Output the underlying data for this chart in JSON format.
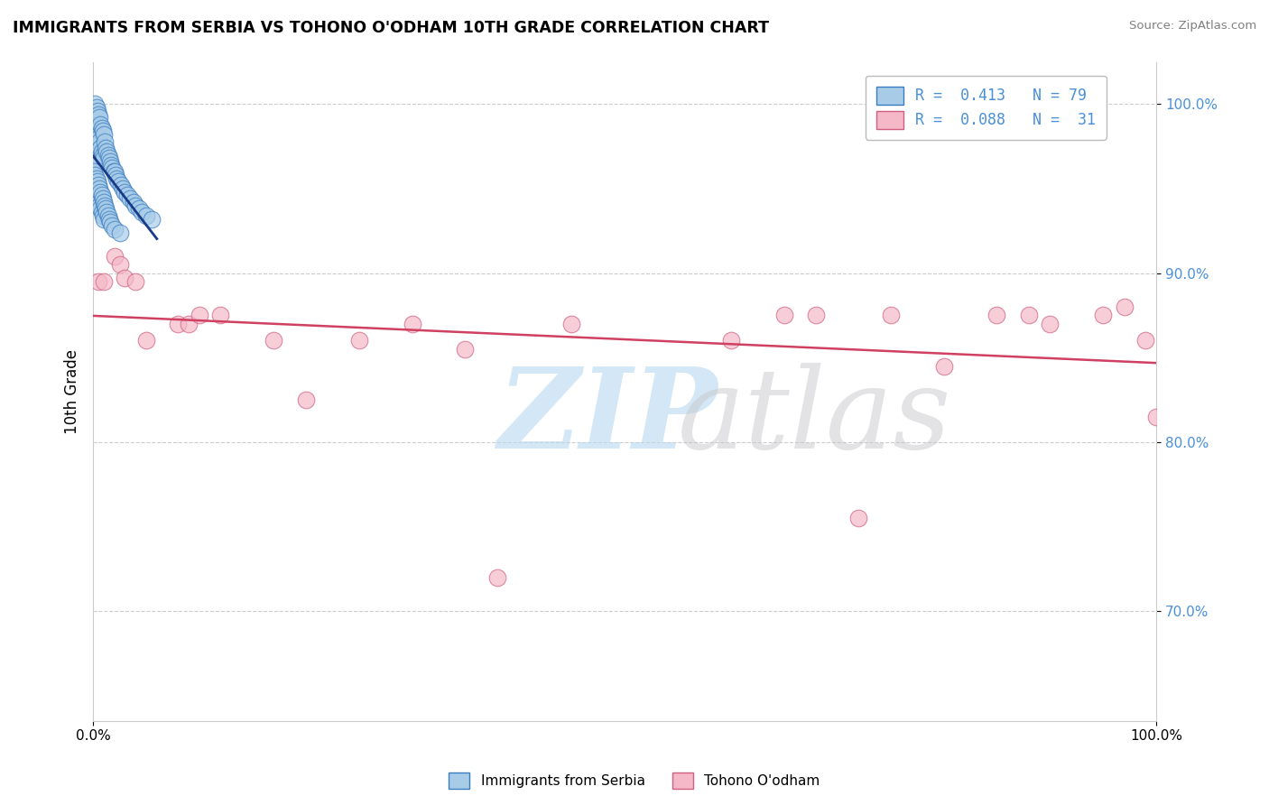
{
  "title": "IMMIGRANTS FROM SERBIA VS TOHONO O'ODHAM 10TH GRADE CORRELATION CHART",
  "source": "Source: ZipAtlas.com",
  "ylabel": "10th Grade",
  "xlim": [
    0.0,
    1.0
  ],
  "ylim": [
    0.635,
    1.025
  ],
  "yticks": [
    0.7,
    0.8,
    0.9,
    1.0
  ],
  "ytick_labels": [
    "70.0%",
    "80.0%",
    "90.0%",
    "100.0%"
  ],
  "blue_color": "#a8cce8",
  "pink_color": "#f5b8c8",
  "blue_edge": "#3a7cc0",
  "pink_edge": "#d06080",
  "blue_line_color": "#1a3a8a",
  "pink_line_color": "#d04060",
  "blue_scatter_x": [
    0.001,
    0.001,
    0.001,
    0.002,
    0.002,
    0.002,
    0.002,
    0.003,
    0.003,
    0.003,
    0.004,
    0.004,
    0.004,
    0.005,
    0.005,
    0.005,
    0.006,
    0.006,
    0.007,
    0.007,
    0.008,
    0.008,
    0.009,
    0.009,
    0.01,
    0.01,
    0.011,
    0.012,
    0.013,
    0.014,
    0.015,
    0.016,
    0.017,
    0.018,
    0.019,
    0.02,
    0.021,
    0.022,
    0.024,
    0.026,
    0.028,
    0.03,
    0.032,
    0.035,
    0.038,
    0.04,
    0.043,
    0.046,
    0.05,
    0.055,
    0.001,
    0.001,
    0.002,
    0.002,
    0.003,
    0.003,
    0.004,
    0.004,
    0.005,
    0.005,
    0.006,
    0.006,
    0.007,
    0.007,
    0.008,
    0.008,
    0.009,
    0.009,
    0.01,
    0.01,
    0.011,
    0.012,
    0.013,
    0.014,
    0.015,
    0.016,
    0.018,
    0.02,
    0.025
  ],
  "blue_scatter_y": [
    0.995,
    0.985,
    0.975,
    1.0,
    0.99,
    0.975,
    0.965,
    0.998,
    0.988,
    0.972,
    0.996,
    0.982,
    0.968,
    0.994,
    0.98,
    0.966,
    0.992,
    0.978,
    0.988,
    0.974,
    0.986,
    0.972,
    0.984,
    0.97,
    0.982,
    0.968,
    0.978,
    0.974,
    0.972,
    0.97,
    0.968,
    0.966,
    0.964,
    0.962,
    0.96,
    0.96,
    0.958,
    0.956,
    0.954,
    0.952,
    0.95,
    0.948,
    0.946,
    0.944,
    0.942,
    0.94,
    0.938,
    0.936,
    0.934,
    0.932,
    0.96,
    0.95,
    0.958,
    0.948,
    0.956,
    0.946,
    0.954,
    0.944,
    0.952,
    0.942,
    0.95,
    0.94,
    0.948,
    0.938,
    0.946,
    0.936,
    0.944,
    0.934,
    0.942,
    0.932,
    0.94,
    0.938,
    0.936,
    0.934,
    0.932,
    0.93,
    0.928,
    0.926,
    0.924
  ],
  "pink_scatter_x": [
    0.005,
    0.01,
    0.02,
    0.025,
    0.03,
    0.04,
    0.05,
    0.08,
    0.09,
    0.1,
    0.12,
    0.17,
    0.2,
    0.25,
    0.3,
    0.35,
    0.38,
    0.45,
    0.6,
    0.65,
    0.68,
    0.72,
    0.75,
    0.8,
    0.85,
    0.88,
    0.9,
    0.95,
    0.97,
    0.99,
    1.0
  ],
  "pink_scatter_y": [
    0.895,
    0.895,
    0.91,
    0.905,
    0.897,
    0.895,
    0.86,
    0.87,
    0.87,
    0.875,
    0.875,
    0.86,
    0.825,
    0.86,
    0.87,
    0.855,
    0.72,
    0.87,
    0.86,
    0.875,
    0.875,
    0.755,
    0.875,
    0.845,
    0.875,
    0.875,
    0.87,
    0.875,
    0.88,
    0.86,
    0.815
  ]
}
